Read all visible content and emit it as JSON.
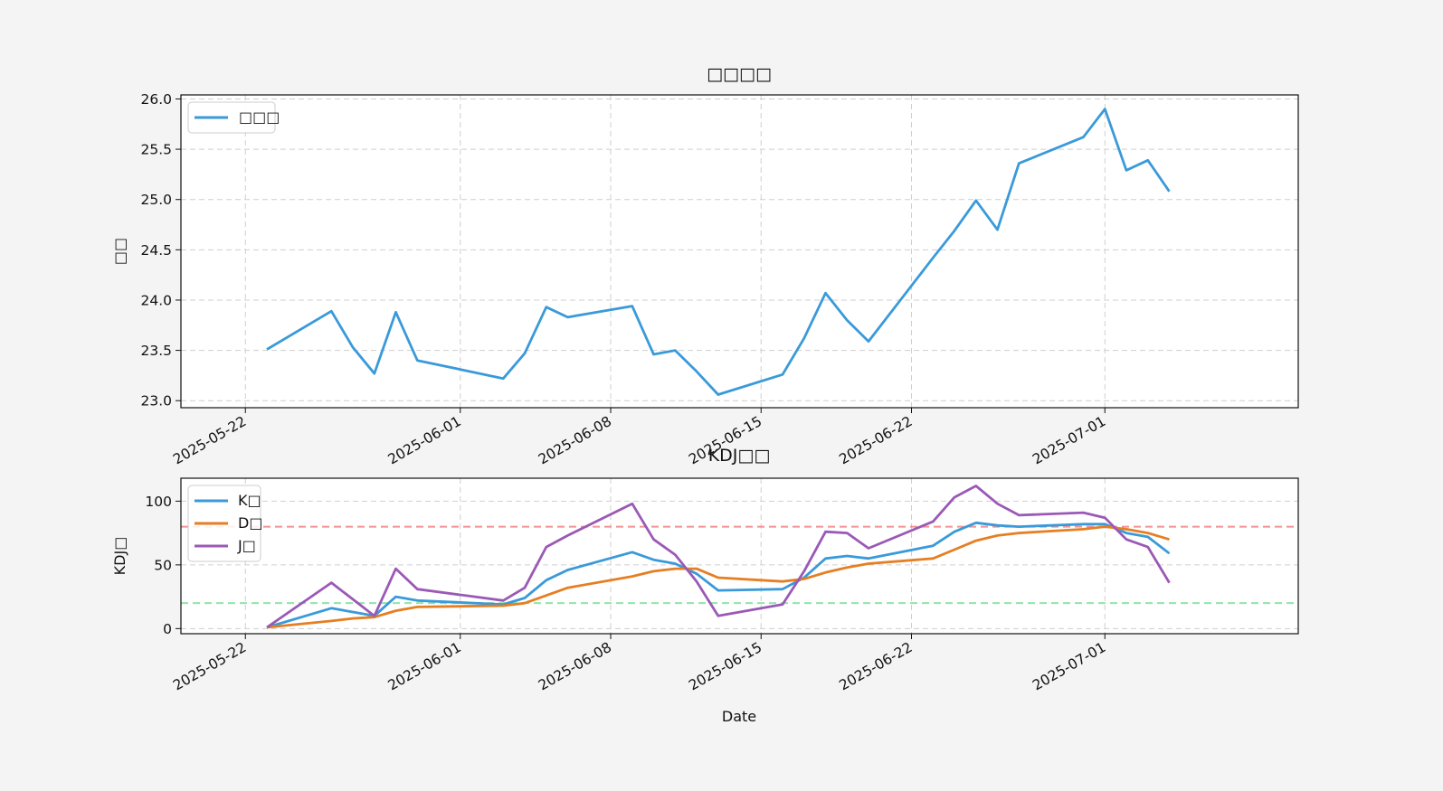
{
  "colors": {
    "k": "#3a9ad9",
    "d": "#e67e22",
    "j": "#9b59b6",
    "overbought": "#f08080",
    "oversold": "#7ddf9a"
  },
  "chart_data": [
    {
      "type": "line",
      "title": "□□□□",
      "xlabel": "",
      "ylabel": "□□",
      "ylim": [
        22.93,
        26.04
      ],
      "yticks": [
        23.0,
        23.5,
        24.0,
        24.5,
        25.0,
        25.5,
        26.0
      ],
      "xticks": [
        "2025-05-22",
        "2025-06-01",
        "2025-06-08",
        "2025-06-15",
        "2025-06-22",
        "2025-07-01"
      ],
      "grid": true,
      "legend": "top-left",
      "series": [
        {
          "name": "□□□",
          "color_key": "k",
          "x": [
            "2025-05-23",
            "2025-05-26",
            "2025-05-27",
            "2025-05-28",
            "2025-05-29",
            "2025-05-30",
            "2025-06-03",
            "2025-06-04",
            "2025-06-05",
            "2025-06-06",
            "2025-06-09",
            "2025-06-10",
            "2025-06-11",
            "2025-06-12",
            "2025-06-13",
            "2025-06-16",
            "2025-06-17",
            "2025-06-18",
            "2025-06-19",
            "2025-06-20",
            "2025-06-23",
            "2025-06-24",
            "2025-06-25",
            "2025-06-26",
            "2025-06-27",
            "2025-06-30",
            "2025-07-01",
            "2025-07-02",
            "2025-07-03",
            "2025-07-04"
          ],
          "values": [
            23.51,
            23.89,
            23.53,
            23.27,
            23.88,
            23.4,
            23.22,
            23.47,
            23.93,
            23.83,
            23.94,
            23.46,
            23.5,
            23.29,
            23.06,
            23.26,
            23.62,
            24.07,
            23.8,
            23.59,
            24.42,
            24.69,
            24.99,
            24.7,
            25.36,
            25.62,
            25.9,
            25.29,
            25.39,
            25.08
          ]
        }
      ]
    },
    {
      "type": "line",
      "title": "KDJ□□",
      "xlabel": "Date",
      "ylabel": "KDJ□",
      "ylim": [
        -4,
        118
      ],
      "yticks": [
        0,
        50,
        100
      ],
      "xticks": [
        "2025-05-22",
        "2025-06-01",
        "2025-06-08",
        "2025-06-15",
        "2025-06-22",
        "2025-07-01"
      ],
      "grid": true,
      "legend": "top-left",
      "reference_lines": [
        {
          "y": 80,
          "color_key": "overbought"
        },
        {
          "y": 20,
          "color_key": "oversold"
        }
      ],
      "x": [
        "2025-05-23",
        "2025-05-26",
        "2025-05-27",
        "2025-05-28",
        "2025-05-29",
        "2025-05-30",
        "2025-06-03",
        "2025-06-04",
        "2025-06-05",
        "2025-06-06",
        "2025-06-09",
        "2025-06-10",
        "2025-06-11",
        "2025-06-12",
        "2025-06-13",
        "2025-06-16",
        "2025-06-17",
        "2025-06-18",
        "2025-06-19",
        "2025-06-20",
        "2025-06-23",
        "2025-06-24",
        "2025-06-25",
        "2025-06-26",
        "2025-06-27",
        "2025-06-30",
        "2025-07-01",
        "2025-07-02",
        "2025-07-03",
        "2025-07-04"
      ],
      "series": [
        {
          "name": "K□",
          "color_key": "k",
          "values": [
            1,
            16,
            13,
            10,
            25,
            22,
            19,
            24,
            38,
            46,
            60,
            54,
            51,
            43,
            30,
            31,
            40,
            55,
            57,
            55,
            65,
            76,
            83,
            81,
            80,
            82,
            82,
            75,
            72,
            59
          ]
        },
        {
          "name": "D□",
          "color_key": "d",
          "values": [
            1,
            6,
            8,
            9,
            14,
            17,
            18,
            20,
            26,
            32,
            41,
            45,
            47,
            47,
            40,
            37,
            39,
            44,
            48,
            51,
            55,
            62,
            69,
            73,
            75,
            78,
            80,
            78,
            75,
            70
          ]
        },
        {
          "name": "J□",
          "color_key": "j",
          "values": [
            1,
            36,
            23,
            10,
            47,
            31,
            22,
            32,
            64,
            73,
            98,
            70,
            58,
            37,
            10,
            19,
            45,
            76,
            75,
            63,
            84,
            103,
            112,
            98,
            89,
            91,
            87,
            70,
            64,
            36
          ]
        }
      ]
    }
  ]
}
